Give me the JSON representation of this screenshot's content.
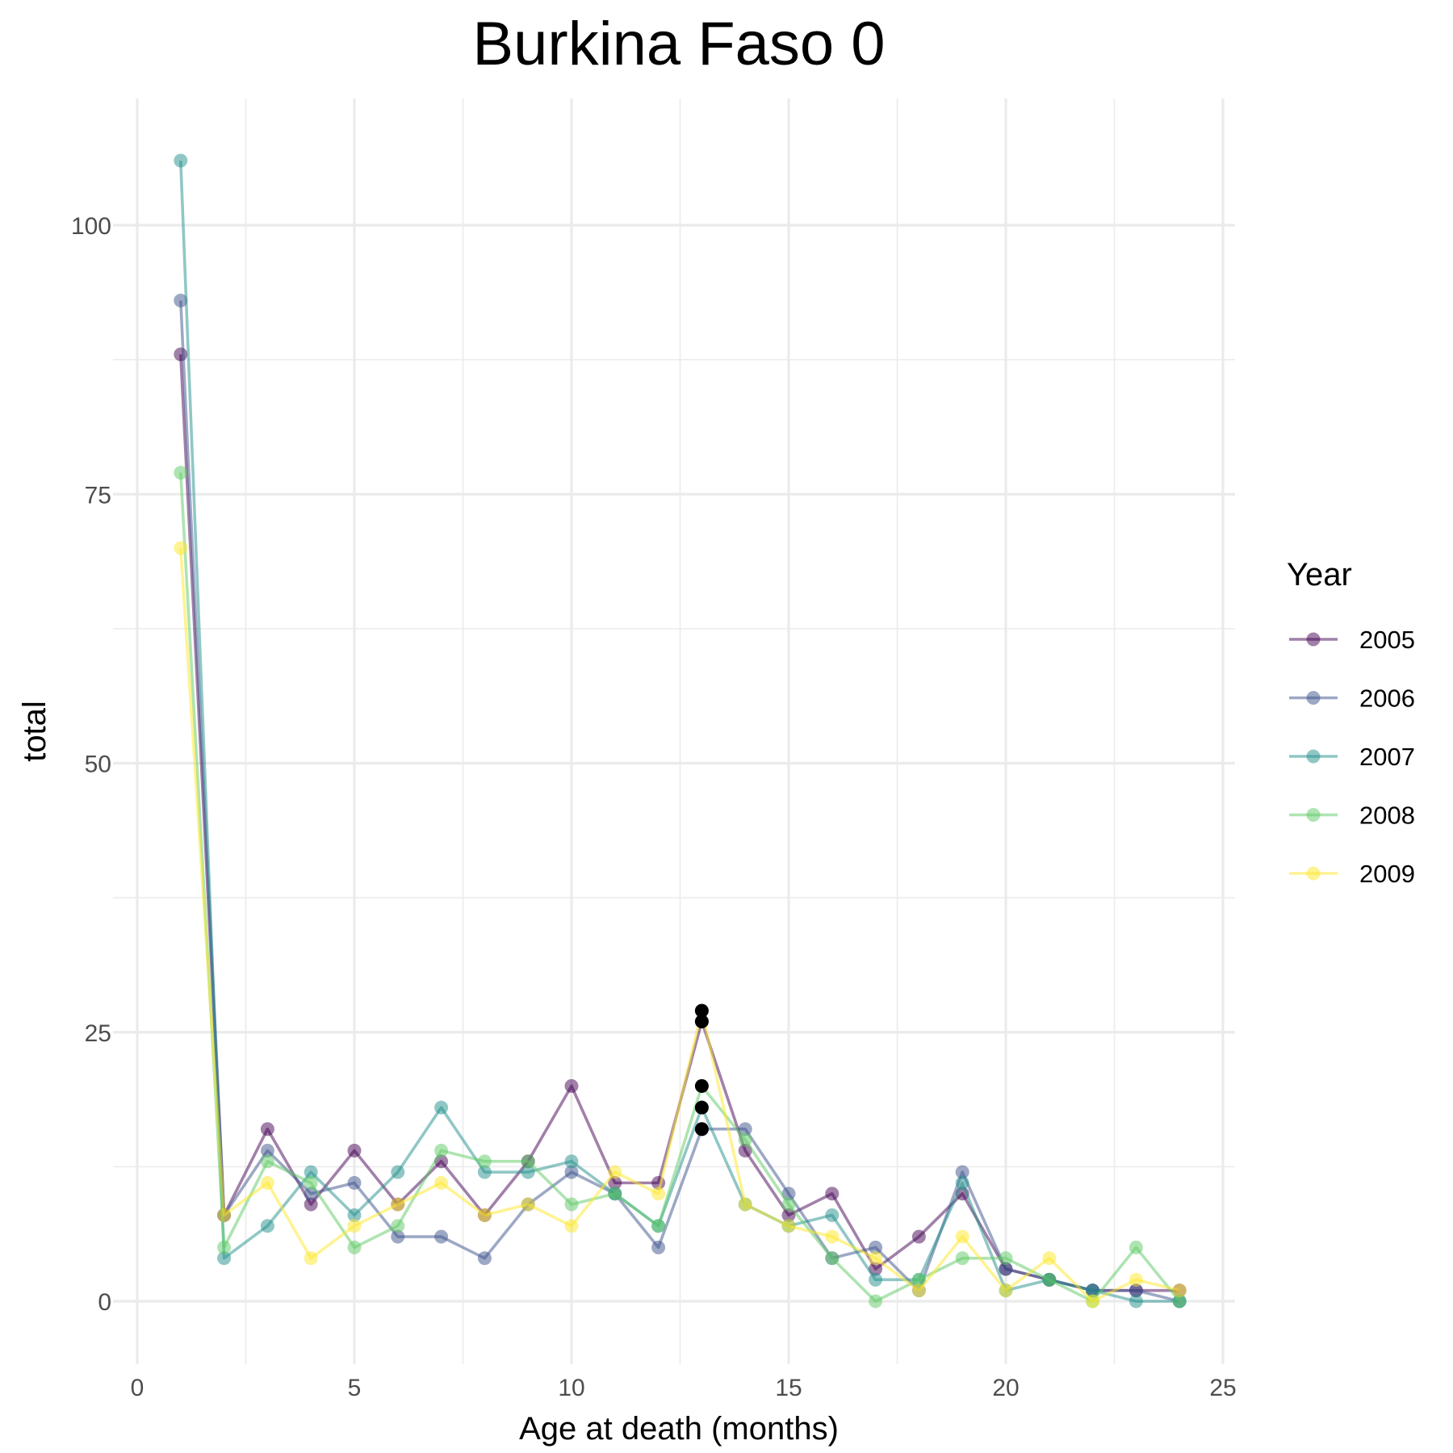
{
  "chart_data": {
    "type": "line",
    "title": "Burkina Faso 0",
    "xlabel": "Age at death (months)",
    "ylabel": "total",
    "xlim": [
      0,
      25
    ],
    "ylim": [
      -5,
      110
    ],
    "x_ticks": [
      0,
      5,
      10,
      15,
      20,
      25
    ],
    "x_tick_labels": [
      "0",
      "5",
      "10",
      "15",
      "20",
      "25"
    ],
    "y_ticks": [
      0,
      25,
      50,
      75,
      100
    ],
    "y_tick_labels": [
      "0",
      "25",
      "50",
      "75",
      "100"
    ],
    "grid": true,
    "legend": {
      "title": "Year",
      "position": "right"
    },
    "x": [
      1,
      2,
      3,
      4,
      5,
      6,
      7,
      8,
      9,
      10,
      11,
      12,
      13,
      14,
      15,
      16,
      17,
      18,
      19,
      20,
      21,
      22,
      23,
      24
    ],
    "series": [
      {
        "name": "2005",
        "color": "#440154",
        "values": [
          88,
          8,
          16,
          9,
          14,
          9,
          13,
          8,
          13,
          20,
          11,
          11,
          26,
          14,
          8,
          10,
          3,
          6,
          10,
          3,
          2,
          1,
          1,
          1
        ]
      },
      {
        "name": "2006",
        "color": "#3b528b",
        "values": [
          93,
          8,
          14,
          10,
          11,
          6,
          6,
          4,
          9,
          12,
          10,
          5,
          16,
          16,
          10,
          4,
          5,
          1,
          12,
          3,
          2,
          1,
          1,
          0
        ]
      },
      {
        "name": "2007",
        "color": "#21908c",
        "values": [
          106,
          4,
          7,
          12,
          8,
          12,
          18,
          12,
          12,
          13,
          10,
          7,
          18,
          9,
          7,
          8,
          2,
          2,
          11,
          1,
          2,
          1,
          0,
          0
        ]
      },
      {
        "name": "2008",
        "color": "#5dc963",
        "values": [
          77,
          5,
          13,
          11,
          5,
          7,
          14,
          13,
          13,
          9,
          10,
          7,
          20,
          15,
          9,
          4,
          0,
          2,
          4,
          4,
          2,
          0,
          5,
          0
        ]
      },
      {
        "name": "2009",
        "color": "#fde725",
        "values": [
          70,
          8,
          11,
          4,
          7,
          9,
          11,
          8,
          9,
          7,
          12,
          10,
          27,
          9,
          7,
          6,
          4,
          1,
          6,
          1,
          4,
          0,
          2,
          1
        ]
      }
    ],
    "highlight": {
      "color": "#000000",
      "x": 13,
      "values": [
        27,
        26,
        20,
        18,
        16
      ]
    }
  }
}
